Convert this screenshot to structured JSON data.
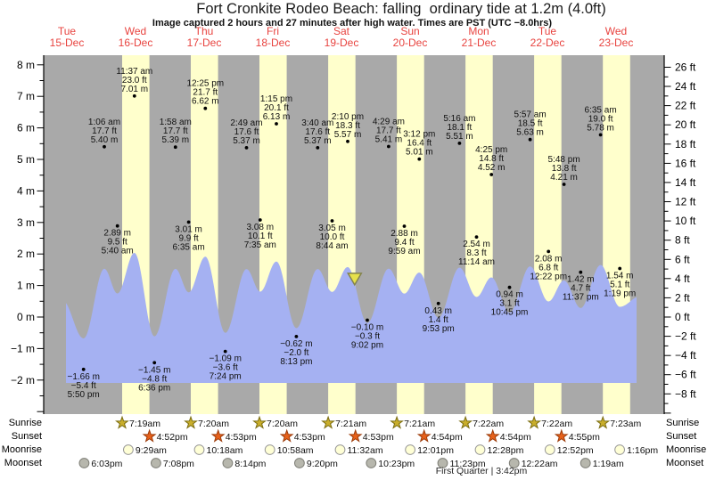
{
  "title": "Fort Cronkite Rodeo Beach: falling  ordinary tide at 1.2m (4.0ft)",
  "subtitle": "Image captured 2 hours and 27 minutes after high water. Times are PST (UTC −8.0hrs)",
  "colors": {
    "day_label": "#e8433f",
    "night_band": "#a9a9a9",
    "daylight_band": "#ffffcc",
    "tide_fill": "#a5b1f2",
    "marker_fill": "#e6e14b",
    "marker_stroke": "#84844e",
    "axis": "#000000",
    "annotation_text": "#111111"
  },
  "days": [
    {
      "name": "Tue",
      "date": "15-Dec"
    },
    {
      "name": "Wed",
      "date": "16-Dec"
    },
    {
      "name": "Thu",
      "date": "17-Dec"
    },
    {
      "name": "Fri",
      "date": "18-Dec"
    },
    {
      "name": "Sat",
      "date": "19-Dec"
    },
    {
      "name": "Sun",
      "date": "20-Dec"
    },
    {
      "name": "Mon",
      "date": "21-Dec"
    },
    {
      "name": "Tue",
      "date": "22-Dec"
    },
    {
      "name": "Wed",
      "date": "23-Dec"
    }
  ],
  "chart_data": {
    "type": "area",
    "ylabel_left": "m",
    "ylabel_right": "ft",
    "ylim_m": [
      -2,
      8
    ],
    "ylim_ft": [
      -8,
      26
    ],
    "grid": false,
    "legend": "none",
    "events": [
      {
        "day": 15,
        "time": "5:50 pm",
        "height_m": -1.66,
        "height_ft": -5.4,
        "type": "low"
      },
      {
        "day": 16,
        "time": "1:06 am",
        "height_m": 5.4,
        "height_ft": 17.7,
        "type": "high"
      },
      {
        "day": 16,
        "time": "5:40 am",
        "height_m": 2.89,
        "height_ft": 9.5,
        "type": "low"
      },
      {
        "day": 16,
        "time": "11:37 am",
        "height_m": 7.01,
        "height_ft": 23.0,
        "type": "high"
      },
      {
        "day": 16,
        "time": "6:36 pm",
        "height_m": -1.45,
        "height_ft": -4.8,
        "type": "low"
      },
      {
        "day": 17,
        "time": "1:58 am",
        "height_m": 5.39,
        "height_ft": 17.7,
        "type": "high"
      },
      {
        "day": 17,
        "time": "6:35 am",
        "height_m": 3.01,
        "height_ft": 9.9,
        "type": "low"
      },
      {
        "day": 17,
        "time": "12:25 pm",
        "height_m": 6.62,
        "height_ft": 21.7,
        "type": "high"
      },
      {
        "day": 17,
        "time": "7:24 pm",
        "height_m": -1.09,
        "height_ft": -3.6,
        "type": "low"
      },
      {
        "day": 18,
        "time": "2:49 am",
        "height_m": 5.37,
        "height_ft": 17.6,
        "type": "high"
      },
      {
        "day": 18,
        "time": "7:35 am",
        "height_m": 3.08,
        "height_ft": 10.1,
        "type": "low"
      },
      {
        "day": 18,
        "time": "1:15 pm",
        "height_m": 6.13,
        "height_ft": 20.1,
        "type": "high"
      },
      {
        "day": 18,
        "time": "8:13 pm",
        "height_m": -0.62,
        "height_ft": -2.0,
        "type": "low"
      },
      {
        "day": 19,
        "time": "3:40 am",
        "height_m": 5.37,
        "height_ft": 17.6,
        "type": "high"
      },
      {
        "day": 19,
        "time": "8:44 am",
        "height_m": 3.05,
        "height_ft": 10.0,
        "type": "low"
      },
      {
        "day": 19,
        "time": "2:10 pm",
        "height_m": 5.57,
        "height_ft": 18.3,
        "type": "high"
      },
      {
        "day": 19,
        "time": "9:02 pm",
        "height_m": -0.1,
        "height_ft": -0.3,
        "type": "low"
      },
      {
        "day": 20,
        "time": "4:29 am",
        "height_m": 5.41,
        "height_ft": 17.7,
        "type": "high"
      },
      {
        "day": 20,
        "time": "9:59 am",
        "height_m": 2.88,
        "height_ft": 9.4,
        "type": "low"
      },
      {
        "day": 20,
        "time": "3:12 pm",
        "height_m": 5.01,
        "height_ft": 16.4,
        "type": "high"
      },
      {
        "day": 20,
        "time": "9:53 pm",
        "height_m": 0.43,
        "height_ft": 1.4,
        "type": "low"
      },
      {
        "day": 21,
        "time": "5:16 am",
        "height_m": 5.51,
        "height_ft": 18.1,
        "type": "high"
      },
      {
        "day": 21,
        "time": "11:14 am",
        "height_m": 2.54,
        "height_ft": 8.3,
        "type": "low"
      },
      {
        "day": 21,
        "time": "4:25 pm",
        "height_m": 4.52,
        "height_ft": 14.8,
        "type": "high"
      },
      {
        "day": 21,
        "time": "10:45 pm",
        "height_m": 0.94,
        "height_ft": 3.1,
        "type": "low"
      },
      {
        "day": 22,
        "time": "5:57 am",
        "height_m": 5.63,
        "height_ft": 18.5,
        "type": "high"
      },
      {
        "day": 22,
        "time": "12:22 pm",
        "height_m": 2.08,
        "height_ft": 6.8,
        "type": "low"
      },
      {
        "day": 22,
        "time": "5:48 pm",
        "height_m": 4.21,
        "height_ft": 13.8,
        "type": "high"
      },
      {
        "day": 22,
        "time": "11:37 pm",
        "height_m": 1.42,
        "height_ft": 4.7,
        "type": "low"
      },
      {
        "day": 23,
        "time": "6:35 am",
        "height_m": 5.78,
        "height_ft": 19.0,
        "type": "high"
      },
      {
        "day": 23,
        "time": "1:19 pm",
        "height_m": 1.54,
        "height_ft": 5.1,
        "type": "low"
      }
    ],
    "capture_marker": {
      "day": 19,
      "time": "4:37 pm"
    }
  },
  "astro": {
    "rows": [
      {
        "label": "Sunrise",
        "icon": "sunrise-star-icon",
        "fill": "#c9ae2b",
        "stroke": "#7b6d12",
        "entries": [
          {
            "day": 16,
            "time": "7:19am"
          },
          {
            "day": 17,
            "time": "7:20am"
          },
          {
            "day": 18,
            "time": "7:20am"
          },
          {
            "day": 19,
            "time": "7:21am"
          },
          {
            "day": 20,
            "time": "7:21am"
          },
          {
            "day": 21,
            "time": "7:22am"
          },
          {
            "day": 22,
            "time": "7:22am"
          },
          {
            "day": 23,
            "time": "7:23am"
          }
        ]
      },
      {
        "label": "Sunset",
        "icon": "sunset-star-icon",
        "fill": "#e7611a",
        "stroke": "#9c3a08",
        "entries": [
          {
            "day": 16,
            "time": "4:52pm"
          },
          {
            "day": 17,
            "time": "4:53pm"
          },
          {
            "day": 18,
            "time": "4:53pm"
          },
          {
            "day": 19,
            "time": "4:53pm"
          },
          {
            "day": 20,
            "time": "4:54pm"
          },
          {
            "day": 21,
            "time": "4:54pm"
          },
          {
            "day": 22,
            "time": "4:55pm"
          }
        ]
      },
      {
        "label": "Moonrise",
        "icon": "moonrise-circle-icon",
        "fill": "#ffffd6",
        "stroke": "#989898",
        "entries": [
          {
            "day": 16,
            "time": "9:29am"
          },
          {
            "day": 17,
            "time": "10:18am"
          },
          {
            "day": 18,
            "time": "10:58am"
          },
          {
            "day": 19,
            "time": "11:32am"
          },
          {
            "day": 20,
            "time": "12:01pm"
          },
          {
            "day": 21,
            "time": "12:28pm"
          },
          {
            "day": 22,
            "time": "12:52pm"
          },
          {
            "day": 23,
            "time": "1:16pm"
          }
        ]
      },
      {
        "label": "Moonset",
        "icon": "moonset-circle-icon",
        "fill": "#b7b7ad",
        "stroke": "#7e7e76",
        "entries": [
          {
            "day": 15,
            "time": "6:03pm"
          },
          {
            "day": 16,
            "time": "7:08pm"
          },
          {
            "day": 17,
            "time": "8:14pm"
          },
          {
            "day": 18,
            "time": "9:20pm"
          },
          {
            "day": 19,
            "time": "10:23pm"
          },
          {
            "day": 20,
            "time": "11:23pm"
          },
          {
            "day": 22,
            "time": "12:22am"
          },
          {
            "day": 23,
            "time": "1:19am"
          }
        ]
      }
    ]
  },
  "moon": {
    "phase_label": "First Quarter | 3:42pm"
  }
}
